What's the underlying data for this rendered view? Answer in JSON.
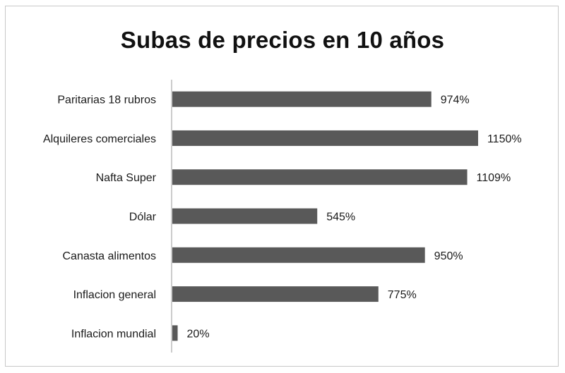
{
  "chart_data": {
    "type": "bar",
    "orientation": "horizontal",
    "title": "Subas de precios en 10 años",
    "categories": [
      "Paritarias  18 rubros",
      "Alquileres comerciales",
      "Nafta Super",
      "Dólar",
      "Canasta alimentos",
      "Inflacion general",
      "Inflacion mundial"
    ],
    "values": [
      974,
      1150,
      1109,
      545,
      950,
      775,
      20
    ],
    "data_labels": [
      "974%",
      "1150%",
      "1109%",
      "545%",
      "950%",
      "775%",
      "20%"
    ],
    "unit": "%",
    "xlim": [
      0,
      1200
    ],
    "grid": false,
    "legend": "none",
    "bar_color": "#595959"
  }
}
